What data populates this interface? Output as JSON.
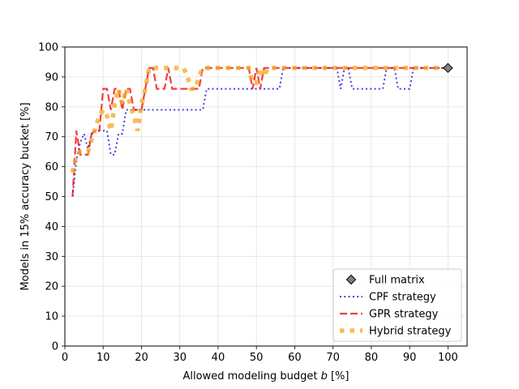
{
  "chart_data": {
    "type": "line",
    "xlabel": "Allowed modeling budget b [%]",
    "xlabel_prefix": "Allowed modeling budget ",
    "xlabel_var": "b",
    "xlabel_suffix": " [%]",
    "ylabel": "Models in 15% accuracy bucket [%]",
    "xlim": [
      0,
      105
    ],
    "ylim": [
      0,
      100
    ],
    "xticks": [
      0,
      10,
      20,
      30,
      40,
      50,
      60,
      70,
      80,
      90,
      100
    ],
    "yticks": [
      0,
      10,
      20,
      30,
      40,
      50,
      60,
      70,
      80,
      90,
      100
    ],
    "grid": true,
    "legend_position": "lower-right",
    "series": [
      {
        "name": "Full matrix",
        "kind": "marker",
        "color": "#808080",
        "x": [
          100
        ],
        "y": [
          93
        ]
      },
      {
        "name": "CPF strategy",
        "kind": "dotted",
        "color": "#0000dd",
        "x": [
          2,
          3,
          4,
          5,
          6,
          7,
          8,
          9,
          10,
          11,
          12,
          13,
          14,
          15,
          16,
          17,
          18,
          19,
          20,
          22,
          25,
          30,
          35,
          36,
          37,
          40,
          45,
          50,
          55,
          56,
          57,
          60,
          65,
          70,
          71,
          72,
          73,
          74,
          75,
          80,
          83,
          84,
          85,
          86,
          87,
          88,
          89,
          90,
          91,
          92,
          95,
          100
        ],
        "y": [
          50,
          62,
          68,
          71,
          66,
          71,
          72,
          72,
          72,
          72,
          64,
          64,
          71,
          71,
          79,
          79,
          79,
          79,
          79,
          79,
          79,
          79,
          79,
          79,
          86,
          86,
          86,
          86,
          86,
          86,
          93,
          93,
          93,
          93,
          93,
          86,
          93,
          93,
          86,
          86,
          86,
          93,
          93,
          93,
          86,
          86,
          86,
          86,
          93,
          93,
          93,
          93
        ]
      },
      {
        "name": "GPR strategy",
        "kind": "dashed",
        "color": "#ee0000",
        "x": [
          2,
          3,
          4,
          5,
          6,
          7,
          8,
          9,
          10,
          11,
          12,
          13,
          14,
          15,
          16,
          17,
          18,
          19,
          20,
          21,
          22,
          23,
          24,
          25,
          26,
          27,
          28,
          29,
          30,
          31,
          32,
          33,
          34,
          35,
          36,
          37,
          40,
          45,
          48,
          49,
          50,
          51,
          52,
          53,
          55,
          60,
          70,
          80,
          90,
          100
        ],
        "y": [
          50,
          72,
          64,
          64,
          64,
          71,
          72,
          72,
          86,
          86,
          79,
          86,
          86,
          79,
          86,
          86,
          79,
          79,
          79,
          86,
          93,
          93,
          86,
          86,
          86,
          93,
          86,
          86,
          86,
          86,
          86,
          86,
          86,
          86,
          93,
          93,
          93,
          93,
          93,
          86,
          93,
          86,
          93,
          93,
          93,
          93,
          93,
          93,
          93,
          93
        ]
      },
      {
        "name": "Hybrid strategy",
        "kind": "dotted-square",
        "color": "#f5a623",
        "x": [
          2,
          3,
          4,
          5,
          6,
          7,
          8,
          9,
          10,
          11,
          12,
          13,
          14,
          15,
          16,
          17,
          18,
          19,
          20,
          21,
          22,
          23,
          24,
          25,
          26,
          27,
          28,
          29,
          30,
          31,
          32,
          33,
          34,
          35,
          36,
          37,
          40,
          45,
          48,
          49,
          50,
          51,
          52,
          53,
          55,
          60,
          70,
          80,
          90,
          100
        ],
        "y": [
          58,
          64,
          65,
          65,
          65,
          69,
          73,
          77,
          79,
          77,
          72,
          81,
          86,
          81,
          86,
          81,
          77,
          72,
          81,
          86,
          93,
          93,
          93,
          93,
          93,
          93,
          93,
          93,
          93,
          93,
          90,
          86,
          86,
          90,
          93,
          93,
          93,
          93,
          93,
          88,
          88,
          93,
          90,
          93,
          93,
          93,
          93,
          93,
          93,
          93
        ]
      }
    ]
  }
}
